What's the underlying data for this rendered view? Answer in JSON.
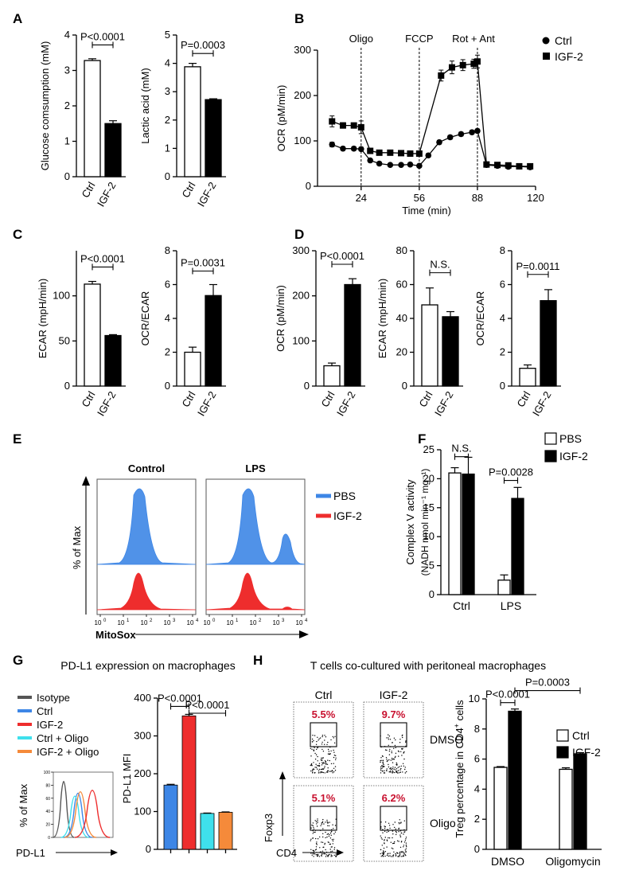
{
  "panel_letters": {
    "A": "A",
    "B": "B",
    "C": "C",
    "D": "D",
    "E": "E",
    "F": "F",
    "G": "G",
    "H": "H"
  },
  "colors": {
    "black": "#000000",
    "white": "#ffffff",
    "pbs_blue": "#3d86e6",
    "igf_red": "#ee2d2d",
    "h_red": "#c8102e",
    "cyan": "#3fe0ec",
    "orange": "#f58a3a",
    "grey": "#555555"
  },
  "chart_data": [
    {
      "id": "A1",
      "type": "bar",
      "categories": [
        "Ctrl",
        "IGF-2"
      ],
      "values": [
        3.28,
        1.5
      ],
      "errors": [
        0.05,
        0.08
      ],
      "fills": [
        "white",
        "black"
      ],
      "ylabel": "Glucose comsumption (mM)",
      "ylim": [
        0,
        4
      ],
      "yticks": [
        0,
        1,
        2,
        3,
        4
      ],
      "comparisons": [
        {
          "from": 0,
          "to": 1,
          "at": 3.72,
          "label": "P<0.0001"
        }
      ]
    },
    {
      "id": "A2",
      "type": "bar",
      "categories": [
        "Ctrl",
        "IGF-2"
      ],
      "values": [
        3.88,
        2.72
      ],
      "errors": [
        0.12,
        0.03
      ],
      "fills": [
        "white",
        "black"
      ],
      "ylabel": "Lactic acid (mM)",
      "ylim": [
        0,
        5
      ],
      "yticks": [
        0,
        1,
        2,
        3,
        4,
        5
      ],
      "comparisons": [
        {
          "from": 0,
          "to": 1,
          "at": 4.35,
          "label": "P=0.0003"
        }
      ]
    },
    {
      "id": "B",
      "type": "line",
      "xlabel": "Time (min)",
      "ylabel": "OCR (pM/min)",
      "xlim": [
        0,
        120
      ],
      "ylim": [
        0,
        300
      ],
      "xticks": [
        24,
        56,
        88,
        120
      ],
      "yticks": [
        0,
        100,
        200,
        300
      ],
      "injections": [
        {
          "x": 24,
          "label": "Oligo"
        },
        {
          "x": 56,
          "label": "FCCP"
        },
        {
          "x": 88,
          "label": "Rot + Ant"
        }
      ],
      "legend": [
        "Ctrl",
        "IGF-2"
      ],
      "series": [
        {
          "name": "Ctrl",
          "marker": "circle",
          "x": [
            8,
            14,
            20,
            24,
            29,
            34,
            40,
            46,
            51,
            56,
            61,
            67,
            73,
            79,
            85,
            88,
            93,
            99,
            105,
            111,
            117
          ],
          "y": [
            92,
            83,
            83,
            82,
            57,
            50,
            47,
            47,
            48,
            45,
            68,
            97,
            108,
            115,
            119,
            122,
            47,
            45,
            43,
            44,
            42
          ],
          "errors": [
            5,
            4,
            4,
            4,
            3,
            3,
            3,
            3,
            3,
            3,
            4,
            4,
            4,
            4,
            4,
            4,
            3,
            3,
            3,
            3,
            3
          ]
        },
        {
          "name": "IGF-2",
          "marker": "square",
          "x": [
            8,
            14,
            20,
            24,
            29,
            34,
            40,
            46,
            51,
            56,
            62,
            68,
            74,
            80,
            86,
            88,
            93,
            99,
            105,
            111,
            117
          ],
          "y": [
            143,
            134,
            134,
            130,
            78,
            74,
            74,
            73,
            72,
            72,
            null,
            244,
            262,
            267,
            270,
            275,
            48,
            47,
            46,
            44,
            44
          ],
          "errors": [
            12,
            6,
            5,
            14,
            4,
            4,
            4,
            4,
            4,
            4,
            null,
            12,
            14,
            12,
            10,
            14,
            3,
            3,
            3,
            3,
            3
          ]
        }
      ]
    },
    {
      "id": "C1",
      "type": "bar",
      "categories": [
        "Ctrl",
        "IGF-2"
      ],
      "values": [
        113,
        56
      ],
      "errors": [
        3,
        1
      ],
      "fills": [
        "white",
        "black"
      ],
      "ylabel": "ECAR (mpH/min)",
      "ylim": [
        0,
        150
      ],
      "yticks": [
        0,
        50,
        100
      ],
      "comparisons": [
        {
          "from": 0,
          "to": 1,
          "at": 132,
          "label": "P<0.0001"
        }
      ]
    },
    {
      "id": "C2",
      "type": "bar",
      "categories": [
        "Ctrl",
        "IGF-2"
      ],
      "values": [
        2.0,
        5.35
      ],
      "errors": [
        0.3,
        0.65
      ],
      "fills": [
        "white",
        "black"
      ],
      "ylabel": "OCR/ECAR",
      "ylim": [
        0,
        8
      ],
      "yticks": [
        0,
        2,
        4,
        6,
        8
      ],
      "comparisons": [
        {
          "from": 0,
          "to": 1,
          "at": 6.8,
          "label": "P=0.0031"
        }
      ]
    },
    {
      "id": "D1",
      "type": "bar",
      "categories": [
        "Ctrl",
        "IGF-2"
      ],
      "values": [
        45,
        225
      ],
      "errors": [
        6,
        13
      ],
      "fills": [
        "white",
        "black"
      ],
      "ylabel": "OCR (pM/min)",
      "ylim": [
        0,
        300
      ],
      "yticks": [
        0,
        100,
        200,
        300
      ],
      "comparisons": [
        {
          "from": 0,
          "to": 1,
          "at": 270,
          "label": "P<0.0001"
        }
      ]
    },
    {
      "id": "D2",
      "type": "bar",
      "categories": [
        "Ctrl",
        "IGF-2"
      ],
      "values": [
        48,
        41
      ],
      "errors": [
        10,
        3
      ],
      "fills": [
        "white",
        "black"
      ],
      "ylabel": "ECAR (mpH/min)",
      "ylim": [
        0,
        80
      ],
      "yticks": [
        0,
        20,
        40,
        60,
        80
      ],
      "comparisons": [
        {
          "from": 0,
          "to": 1,
          "at": 67,
          "label": "N.S."
        }
      ]
    },
    {
      "id": "D3",
      "type": "bar",
      "categories": [
        "Ctrl",
        "IGF-2"
      ],
      "values": [
        1.05,
        5.05
      ],
      "errors": [
        0.2,
        0.65
      ],
      "fills": [
        "white",
        "black"
      ],
      "ylabel": "OCR/ECAR",
      "ylim": [
        0,
        8
      ],
      "yticks": [
        0,
        2,
        4,
        6,
        8
      ],
      "comparisons": [
        {
          "from": 0,
          "to": 1,
          "at": 6.6,
          "label": "P=0.0011"
        }
      ]
    },
    {
      "id": "E",
      "type": "histogram",
      "panel_titles": [
        "Control",
        "LPS"
      ],
      "ylabel": "% of Max",
      "xlabel": "MitoSox",
      "tick_labels": [
        "0",
        "1",
        "2",
        "3",
        "4"
      ],
      "tick_base": "10",
      "legend": [
        {
          "name": "PBS",
          "color": "#3d86e6"
        },
        {
          "name": "IGF-2",
          "color": "#ee2d2d"
        }
      ]
    },
    {
      "id": "F",
      "type": "grouped_bar",
      "groups": [
        "Ctrl",
        "LPS"
      ],
      "series": [
        {
          "name": "PBS",
          "fill": "white",
          "values": [
            21.0,
            2.5
          ],
          "errors": [
            0.9,
            0.9
          ]
        },
        {
          "name": "IGF-2",
          "fill": "black",
          "values": [
            20.8,
            16.6
          ],
          "errors": [
            2.9,
            1.9
          ]
        }
      ],
      "ylabel_line1": "Complex V activity",
      "ylabel_line2": "(NADH nmol min⁻¹ mg⁻¹)",
      "ylim": [
        0,
        25
      ],
      "yticks": [
        0,
        5,
        10,
        15,
        20,
        25
      ],
      "comparisons": [
        {
          "group": 0,
          "at": 23.8,
          "label": "N.S."
        },
        {
          "group": 1,
          "at": 19.7,
          "label": "P=0.0028"
        }
      ]
    },
    {
      "id": "G_hist",
      "type": "histogram",
      "title": "PD-L1 expression on macrophages",
      "ylabel": "% of Max",
      "xlabel": "PD-L1",
      "yticks": [
        "0",
        "20",
        "40",
        "60",
        "80",
        "100"
      ],
      "legend": [
        {
          "name": "Isotype",
          "color": "#555555"
        },
        {
          "name": "Ctrl",
          "color": "#3d86e6"
        },
        {
          "name": "IGF-2",
          "color": "#ee2d2d"
        },
        {
          "name": "Ctrl + Oligo",
          "color": "#3fe0ec"
        },
        {
          "name": "IGF-2 + Oligo",
          "color": "#f58a3a"
        }
      ]
    },
    {
      "id": "G_bar",
      "type": "bar",
      "categories": [
        "Ctrl",
        "IGF-2",
        "Ctrl + Oligo",
        "IGF-2 + Oligo"
      ],
      "values": [
        170,
        353,
        95,
        98
      ],
      "errors": [
        2,
        4,
        1,
        1
      ],
      "fills": [
        "#3d86e6",
        "#ee2d2d",
        "#3fe0ec",
        "#f58a3a"
      ],
      "ylabel": "PD-L1 MFI",
      "ylim": [
        0,
        400
      ],
      "yticks": [
        0,
        100,
        200,
        300,
        400
      ],
      "comparisons": [
        {
          "from": 0,
          "to": 1,
          "at": 378,
          "label": "P<0.0001"
        },
        {
          "from": 1,
          "to": 3,
          "at": 360,
          "label": "P<0.0001"
        }
      ]
    },
    {
      "id": "H_flow",
      "type": "scatter",
      "title": "T cells co-cultured with peritoneal macrophages",
      "columns": [
        "Ctrl",
        "IGF-2"
      ],
      "rows": [
        "DMSO",
        "Oligo"
      ],
      "percentages": [
        [
          "5.5%",
          "9.7%"
        ],
        [
          "5.1%",
          "6.2%"
        ]
      ],
      "ylabel": "Foxp3",
      "xlabel": "CD4"
    },
    {
      "id": "H_bar",
      "type": "grouped_bar",
      "groups": [
        "DMSO",
        "Oligomycin"
      ],
      "series": [
        {
          "name": "Ctrl",
          "fill": "white",
          "values": [
            5.45,
            5.32
          ],
          "errors": [
            0.05,
            0.1
          ]
        },
        {
          "name": "IGF-2",
          "fill": "black",
          "values": [
            9.18,
            6.35
          ],
          "errors": [
            0.15,
            0.08
          ]
        }
      ],
      "ylabel": "Treg percentage in CD4",
      "ylabel_sup": "+",
      "ylabel_tail": " cells",
      "ylim": [
        0,
        10
      ],
      "yticks": [
        0,
        2,
        4,
        6,
        8,
        10
      ],
      "comparisons": [
        {
          "label": "P<0.0001",
          "at": 9.75
        },
        {
          "label": "P=0.0003",
          "at": 10.55
        }
      ]
    }
  ]
}
